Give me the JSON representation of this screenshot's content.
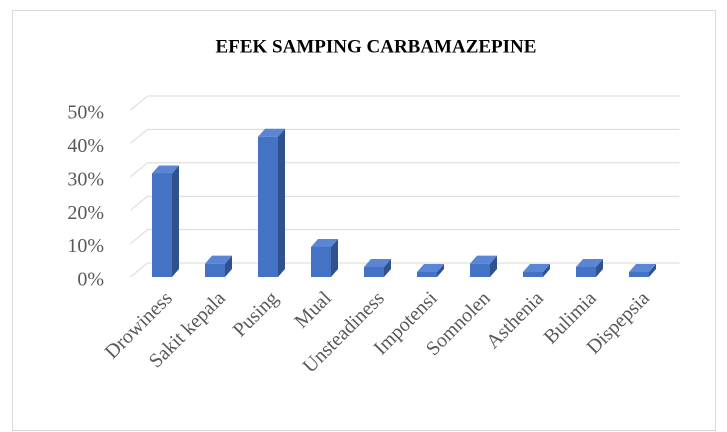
{
  "chart_data": {
    "type": "bar",
    "title": "EFEK SAMPING CARBAMAZEPINE",
    "categories": [
      "Drowiness",
      "Sakit kepala",
      "Pusing",
      "Mual",
      "Unsteadiness",
      "Impotensi",
      "Somnolen",
      "Asthenia",
      "Bulimia",
      "Dispepsia"
    ],
    "values": [
      31,
      4,
      42,
      9,
      3,
      1.5,
      4,
      1.5,
      3,
      1.5
    ],
    "color": "#4472c4",
    "ylim": [
      0,
      50
    ],
    "yticks": [
      {
        "value": 0,
        "label": "0%"
      },
      {
        "value": 10,
        "label": "10%"
      },
      {
        "value": 20,
        "label": "20%"
      },
      {
        "value": 30,
        "label": "30%"
      },
      {
        "value": 40,
        "label": "40%"
      },
      {
        "value": 50,
        "label": "50%"
      }
    ],
    "grid": true
  }
}
